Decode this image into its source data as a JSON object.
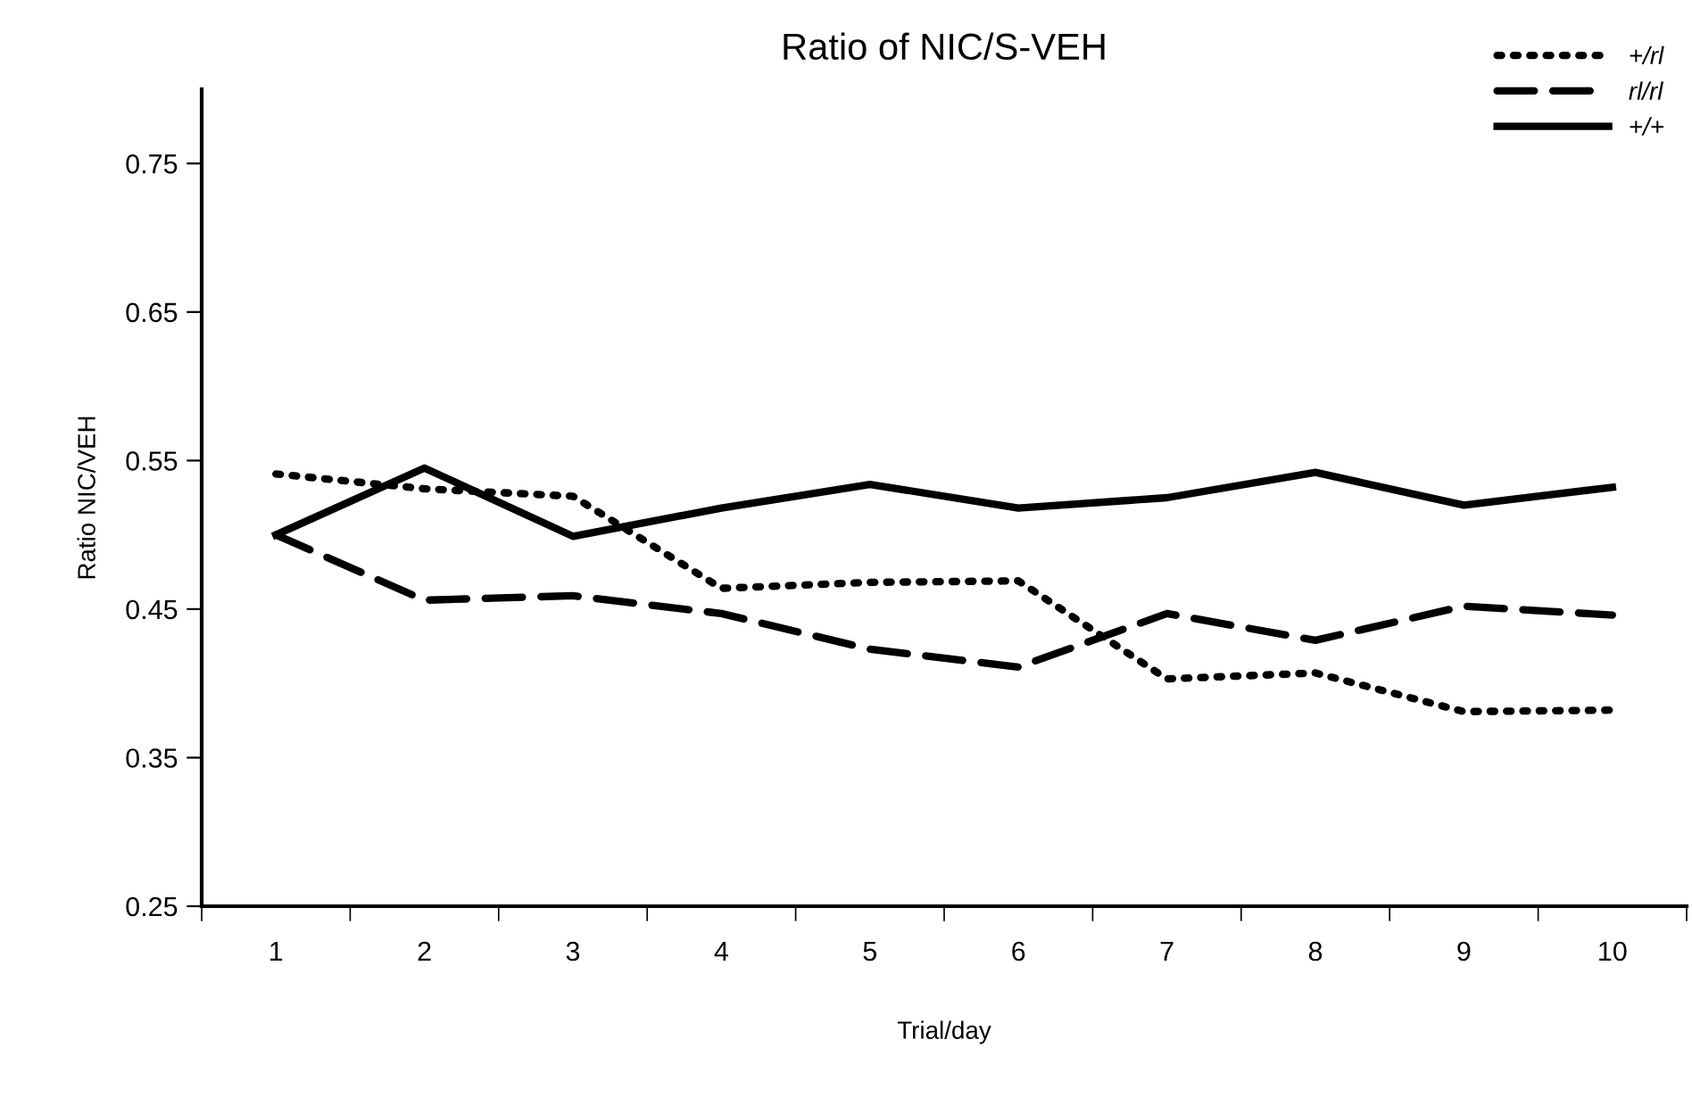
{
  "chart_data": {
    "type": "line",
    "title": "Ratio of NIC/S-VEH",
    "xlabel": "Trial/day",
    "ylabel": "Ratio NIC/VEH",
    "categories": [
      "1",
      "2",
      "3",
      "4",
      "5",
      "6",
      "7",
      "8",
      "9",
      "10"
    ],
    "ylim": [
      0.25,
      0.8
    ],
    "yticks": [
      {
        "value": 0.25,
        "label": "0.25"
      },
      {
        "value": 0.35,
        "label": "0.35"
      },
      {
        "value": 0.45,
        "label": "0.45"
      },
      {
        "value": 0.55,
        "label": "0.55"
      },
      {
        "value": 0.65,
        "label": "0.65"
      },
      {
        "value": 0.75,
        "label": "0.75"
      }
    ],
    "grid": false,
    "legend": "top right",
    "marker": "none",
    "series": [
      {
        "name": "+/rl",
        "color": "#000000",
        "line_style": "dotted",
        "values": [
          0.541,
          0.531,
          0.526,
          0.464,
          0.468,
          0.469,
          0.403,
          0.407,
          0.381,
          0.382
        ]
      },
      {
        "name": "rl/rl",
        "color": "#000000",
        "line_style": "dashed",
        "values": [
          0.5,
          0.456,
          0.459,
          0.447,
          0.423,
          0.411,
          0.447,
          0.429,
          0.452,
          0.446
        ]
      },
      {
        "name": "+/+",
        "color": "#000000",
        "line_style": "solid",
        "values": [
          0.5,
          0.545,
          0.499,
          0.518,
          0.534,
          0.518,
          0.525,
          0.542,
          0.52,
          0.532
        ]
      }
    ]
  }
}
